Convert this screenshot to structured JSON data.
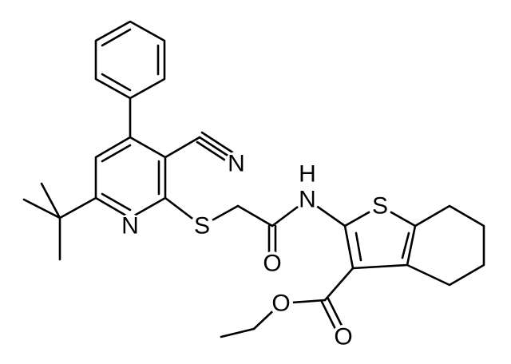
{
  "atoms": {
    "nitrile_n": "N",
    "pyridine_n": "N",
    "thioether_s": "S",
    "amide_h": "H",
    "amide_n": "N",
    "amide_o": "O",
    "thiophene_s": "S",
    "ester_o": "O",
    "carbonyl_o": "O"
  }
}
